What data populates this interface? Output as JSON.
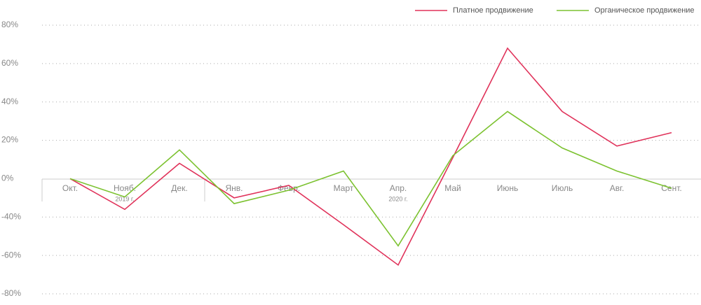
{
  "chart_data": {
    "type": "line",
    "categories": [
      "Окт.",
      "Нояб.",
      "Дек.",
      "Янв.",
      "Февр.",
      "Март",
      "Апр.",
      "Май",
      "Июнь",
      "Июль",
      "Авг.",
      "Сент."
    ],
    "year_labels": [
      null,
      "2019 г.",
      null,
      null,
      null,
      null,
      "2020 г.",
      null,
      null,
      null,
      null,
      null
    ],
    "series": [
      {
        "name": "Платное продвижение",
        "color": "#e0325a",
        "values": [
          0,
          -32,
          8,
          -20,
          -7,
          -44,
          -65,
          11,
          68,
          35,
          17,
          24
        ]
      },
      {
        "name": "Органическое продвижение",
        "color": "#7cc230",
        "values": [
          0,
          -19,
          15,
          -26,
          -12,
          4,
          -55,
          12,
          35,
          16,
          4,
          -10
        ]
      }
    ],
    "ylim": [
      -80,
      80
    ],
    "yticks": [
      {
        "value": 80,
        "label": "80%"
      },
      {
        "value": 60,
        "label": "60%"
      },
      {
        "value": 40,
        "label": "40%"
      },
      {
        "value": 20,
        "label": "20%"
      },
      {
        "value": 0,
        "label": "0%"
      },
      {
        "value": -40,
        "label": "-40%"
      },
      {
        "value": -60,
        "label": "-60%"
      },
      {
        "value": -80,
        "label": "-80%"
      }
    ],
    "grid": true,
    "legend": "top-right"
  }
}
